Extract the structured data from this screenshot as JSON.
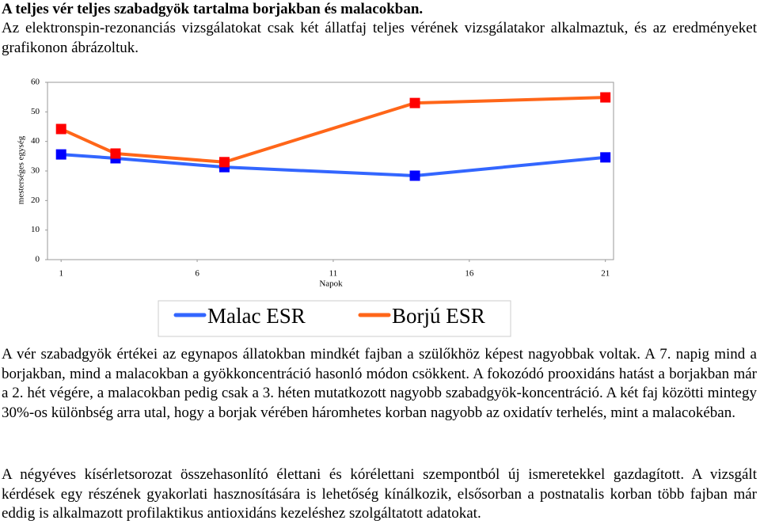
{
  "title": "A teljes vér teljes szabadgyök tartalma borjakban és malacokban.",
  "paragraphs": [
    "Az elektronspin-rezonanciás vizsgálatokat csak két állatfaj teljes vérének vizsgálatakor alkalmaztuk, és az eredményeket grafikonon ábrázoltuk.",
    "A vér szabadgyök értékei az egynapos állatokban mindkét fajban a szülőkhöz képest nagyobbak voltak. A 7. napig mind a borjakban, mind a malacokban a gyökkoncentráció hasonló módon csökkent. A fokozódó prooxidáns hatást a borjakban már a 2. hét végére, a malacokban pedig csak a 3. héten mutatkozott nagyobb szabadgyök-koncentráció. A két faj közötti mintegy 30%-os különbség arra utal, hogy a borjak vérében háromhetes korban nagyobb az oxidatív terhelés, mint a malacokéban.",
    "A négyéves kísérletsorozat összehasonlító élettani és kórélettani szempontból új ismeretekkel gazdagított. A vizsgált kérdések egy részének gyakorlati hasznosítására is lehetőség kínálkozik, elsősorban a postnatalis korban több fajban már eddig is alkalmazott profilaktikus antioxidáns kezeléshez szolgáltatott adatokat."
  ],
  "chart_data": {
    "type": "line",
    "x_label": "Napok",
    "y_label": "mesterséges egység",
    "x": [
      1,
      3,
      7,
      14,
      21
    ],
    "series": [
      {
        "name": "Malac ESR",
        "color": "#3366ff",
        "marker_color": "#0000ff",
        "values": [
          35.6,
          34.3,
          31.3,
          28.4,
          34.6
        ]
      },
      {
        "name": "Borjú ESR",
        "color": "#ff6619",
        "marker_color": "#ff0000",
        "values": [
          44.2,
          35.9,
          33.0,
          53.0,
          54.9
        ]
      }
    ],
    "xlim": [
      0.5,
      21.3
    ],
    "xticks": [
      1,
      6,
      11,
      16,
      21
    ],
    "ylim": [
      0,
      60
    ],
    "yticks": [
      0,
      10,
      20,
      30,
      40,
      50,
      60
    ],
    "legend": "bottom"
  }
}
